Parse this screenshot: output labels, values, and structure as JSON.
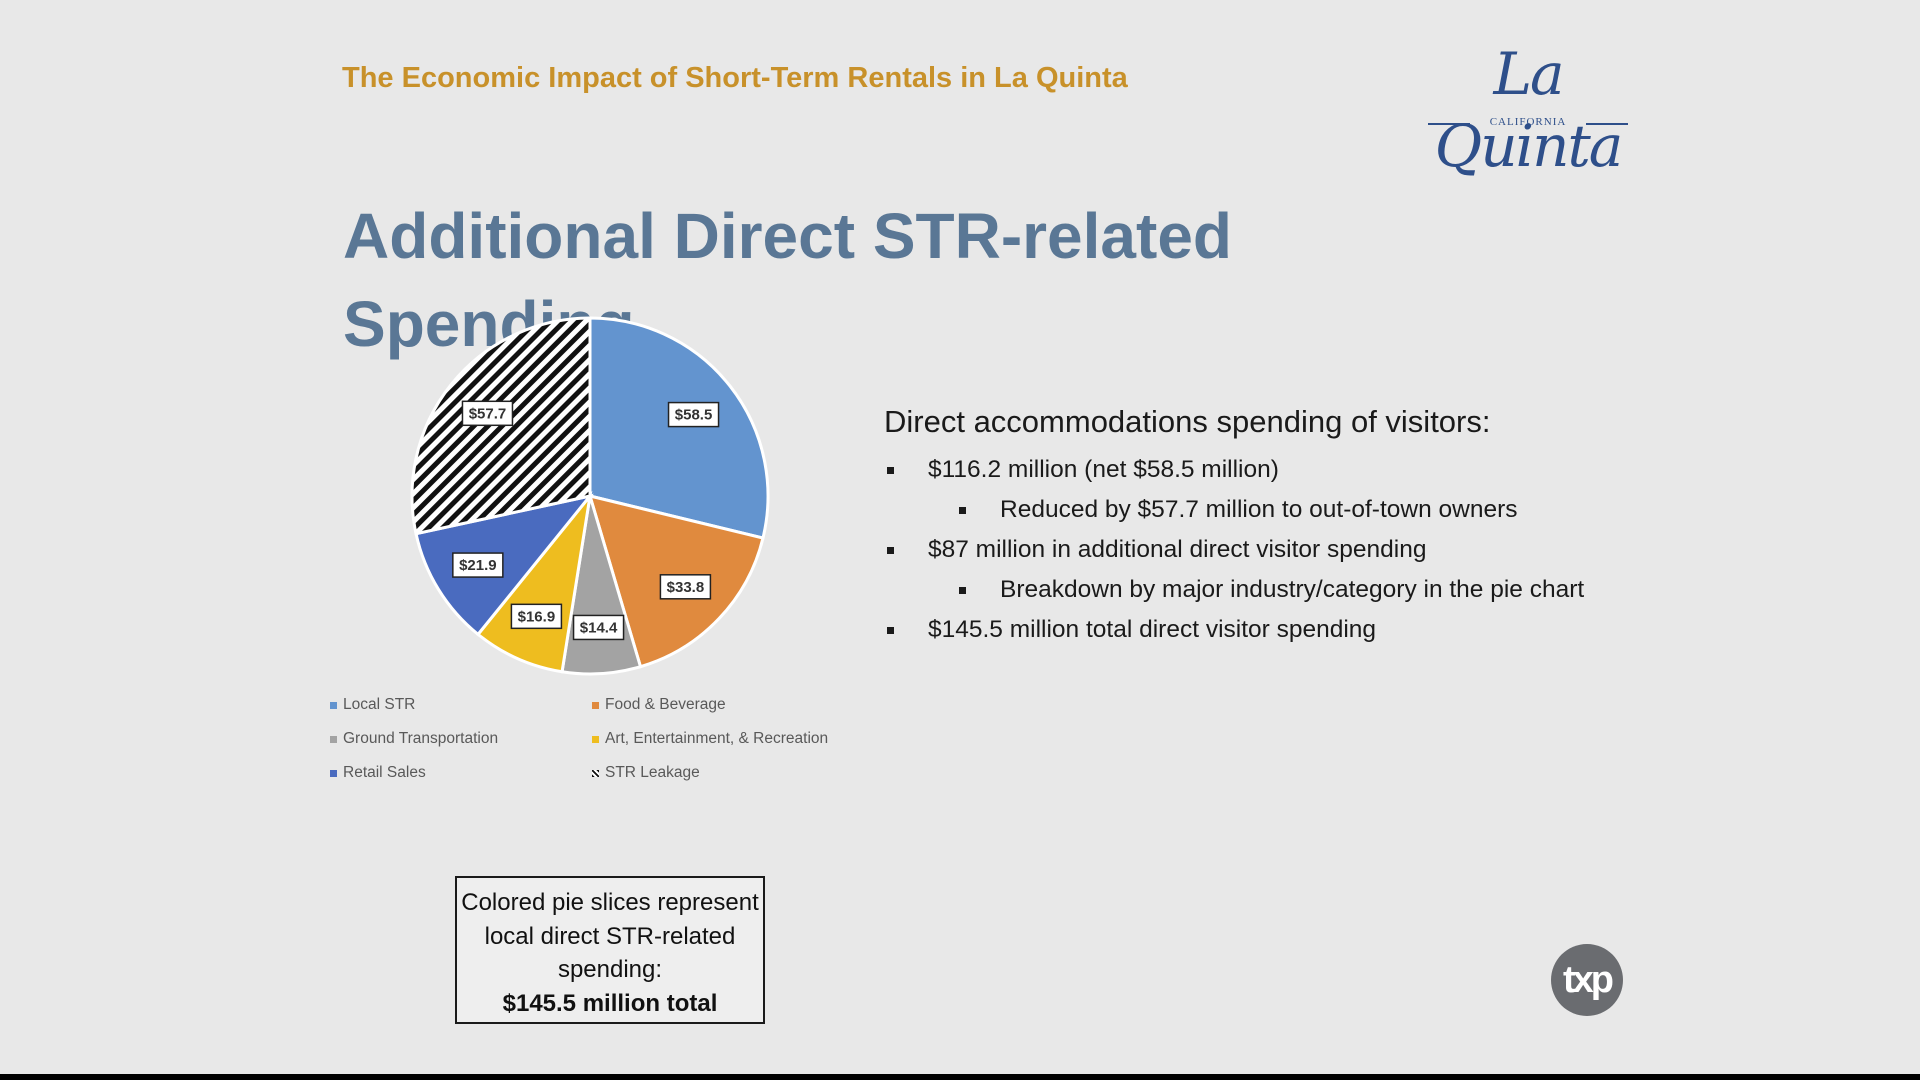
{
  "header": {
    "title": "The Economic Impact of Short-Term Rentals in La Quinta",
    "logo_text": "La Quinta",
    "logo_subtext": "CALIFORNIA"
  },
  "slide_title": "Additional Direct STR-related Spending",
  "chart_data": {
    "type": "pie",
    "title": "",
    "slices": [
      {
        "label": "Local STR",
        "value": 58.5,
        "data_label": "$58.5",
        "color": "#6394cf"
      },
      {
        "label": "Food & Beverage",
        "value": 33.8,
        "data_label": "$33.8",
        "color": "#e08a3e"
      },
      {
        "label": "Ground Transportation",
        "value": 14.4,
        "data_label": "$14.4",
        "color": "#a3a3a3"
      },
      {
        "label": "Art, Entertainment, & Recreation",
        "value": 16.9,
        "data_label": "$16.9",
        "color": "#eebd1f"
      },
      {
        "label": "Retail Sales",
        "value": 21.9,
        "data_label": "$21.9",
        "color": "#4a6bbf"
      },
      {
        "label": "STR Leakage",
        "value": 57.7,
        "data_label": "$57.7",
        "color": "#000000",
        "pattern": "diagonal-stripes"
      }
    ],
    "legend_position": "bottom"
  },
  "bullets": {
    "heading": "Direct accommodations spending of visitors:",
    "items": [
      {
        "level": 1,
        "text": "$116.2 million (net $58.5 million)"
      },
      {
        "level": 2,
        "text": "Reduced by $57.7 million to out-of-town owners"
      },
      {
        "level": 1,
        "text": "$87 million in additional direct visitor spending"
      },
      {
        "level": 2,
        "text": "Breakdown by major industry/category in the pie chart"
      },
      {
        "level": 1,
        "text": "$145.5 million total direct visitor spending"
      }
    ]
  },
  "note": {
    "line1": "Colored pie slices represent local direct STR-related spending:",
    "bold": "$145.5 million total"
  },
  "badge": {
    "text": "txp",
    "icon": "txp-logo-icon"
  }
}
